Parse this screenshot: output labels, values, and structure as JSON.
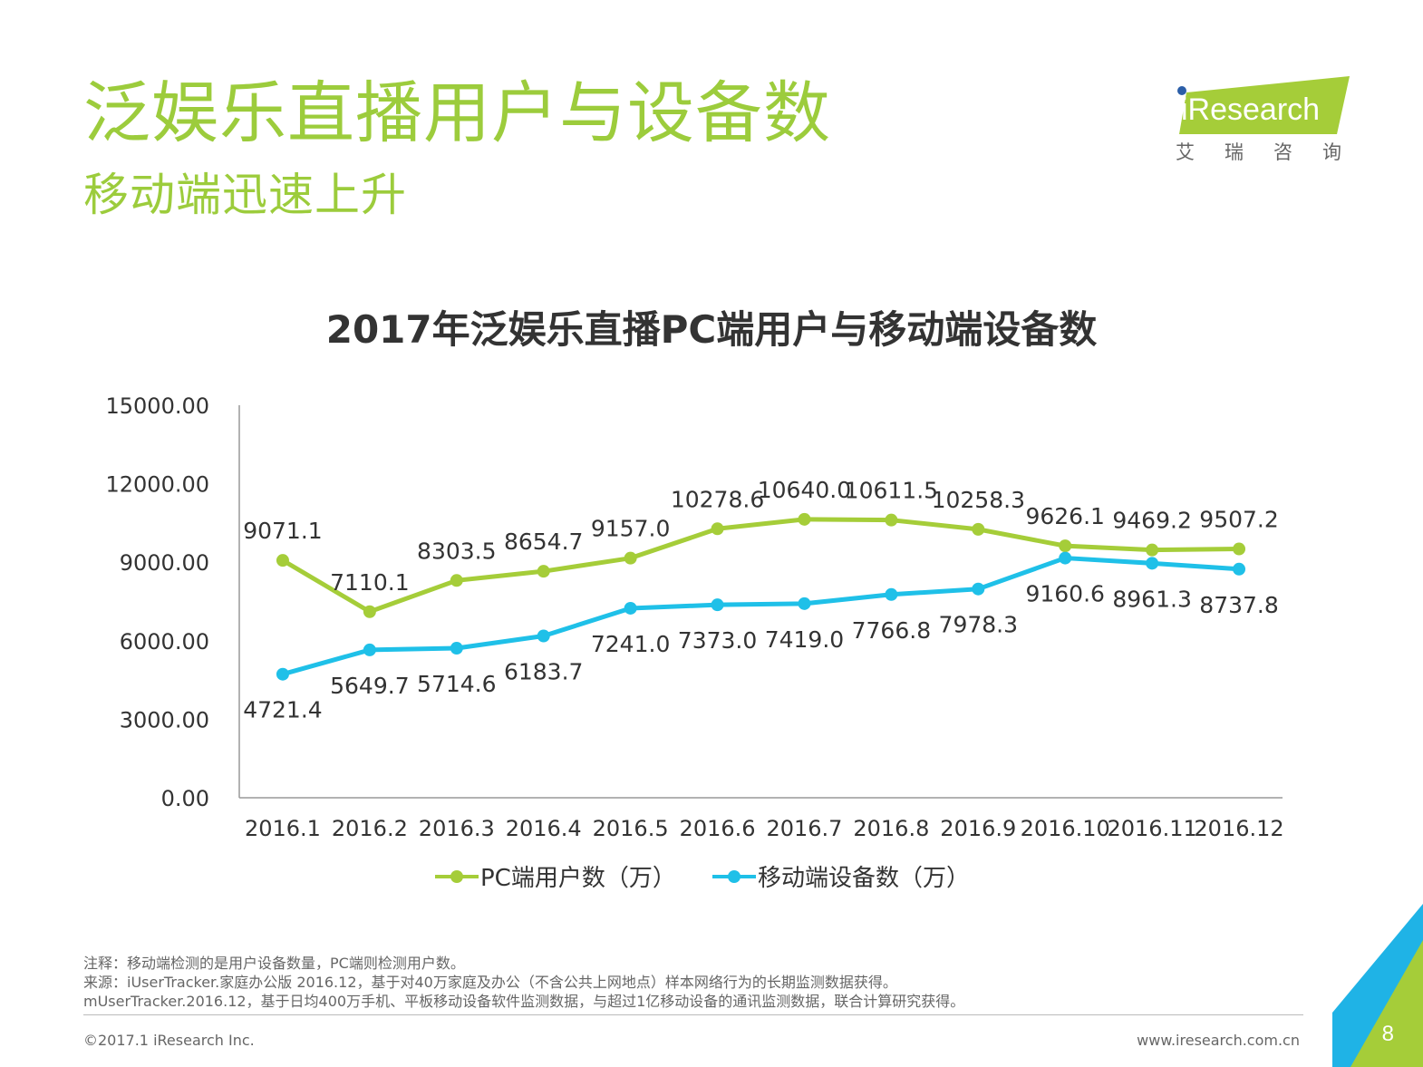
{
  "page": {
    "title": "泛娱乐直播用户与设备数",
    "subtitle": "移动端迅速上升",
    "logo_text": "iResearch",
    "logo_subtext": "艾瑞咨询",
    "notes": [
      "注释：移动端检测的是用户设备数量，PC端则检测用户数。",
      "来源：iUserTracker.家庭办公版 2016.12，基于对40万家庭及办公（不含公共上网地点）样本网络行为的长期监测数据获得。",
      "mUserTracker.2016.12，基于日均400万手机、平板移动设备软件监测数据，与超过1亿移动设备的通讯监测数据，联合计算研究获得。"
    ],
    "copyright": "©2017.1 iResearch Inc.",
    "website": "www.iresearch.com.cn",
    "page_number": "8",
    "colors": {
      "accent": "#9ccc3c",
      "pc": "#a5cd39",
      "mobile": "#1fc0e8"
    }
  },
  "chart_data": {
    "type": "line",
    "title": "2017年泛娱乐直播PC端用户与移动端设备数",
    "categories": [
      "2016.1",
      "2016.2",
      "2016.3",
      "2016.4",
      "2016.5",
      "2016.6",
      "2016.7",
      "2016.8",
      "2016.9",
      "2016.10",
      "2016.11",
      "2016.12"
    ],
    "series": [
      {
        "name": "PC端用户数（万）",
        "values": [
          9071.1,
          7110.1,
          8303.5,
          8654.7,
          9157.0,
          10278.6,
          10640.0,
          10611.5,
          10258.3,
          9626.1,
          9469.2,
          9507.2
        ],
        "color": "#a5cd39"
      },
      {
        "name": "移动端设备数（万）",
        "values": [
          4721.4,
          5649.7,
          5714.6,
          6183.7,
          7241.0,
          7373.0,
          7419.0,
          7766.8,
          7978.3,
          9160.6,
          8961.3,
          8737.8
        ],
        "color": "#1fc0e8"
      }
    ],
    "yticks": [
      "0.00",
      "3000.00",
      "6000.00",
      "9000.00",
      "12000.00",
      "15000.00"
    ],
    "ylim": [
      0,
      15000
    ],
    "legend_position": "bottom",
    "grid": false
  }
}
